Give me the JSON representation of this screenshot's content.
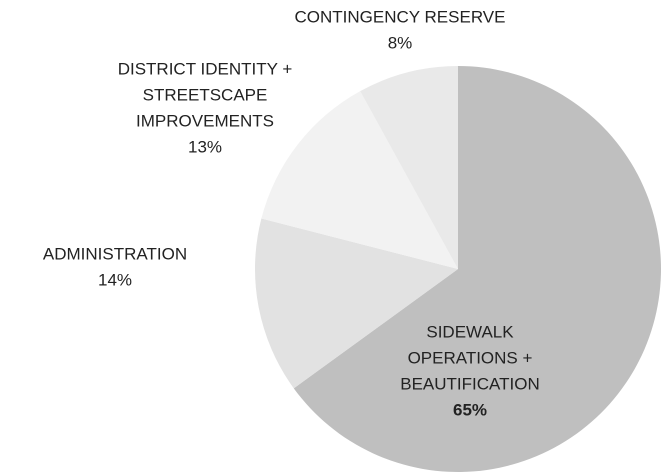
{
  "chart_data": {
    "type": "pie",
    "categories": [
      [
        "SIDEWALK",
        "OPERATIONS +",
        "BEAUTIFICATION"
      ],
      [
        "ADMINISTRATION"
      ],
      [
        "DISTRICT IDENTITY +",
        "STREETSCAPE",
        "IMPROVEMENTS"
      ],
      [
        "CONTINGENCY RESERVE"
      ]
    ],
    "values": [
      65,
      14,
      13,
      8
    ],
    "value_labels": [
      "65%",
      "14%",
      "13%",
      "8%"
    ],
    "colors": [
      "#bfbfbf",
      "#e2e2e2",
      "#f2f2f2",
      "#e9e9e9"
    ]
  }
}
